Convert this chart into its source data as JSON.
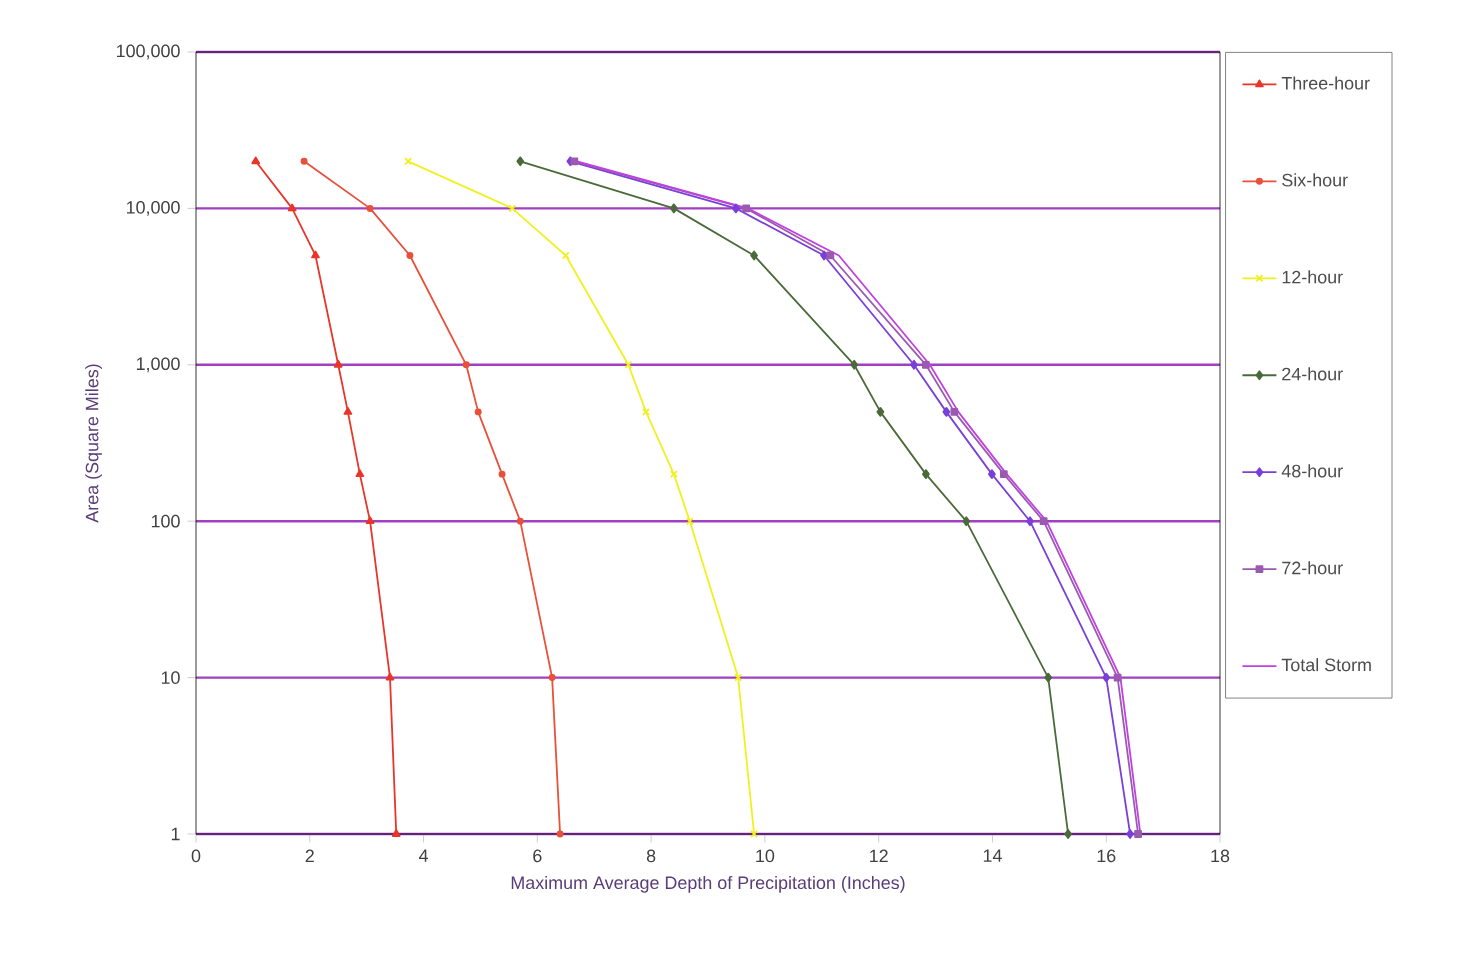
{
  "chart_data": {
    "type": "line",
    "xlabel": "Maximum Average Depth of Precipitation (Inches)",
    "ylabel": "Area (Square Miles)",
    "log": "y",
    "grid": "y",
    "legend": "right",
    "xlim": [
      0,
      18
    ],
    "xticks": [
      0,
      2,
      4,
      6,
      8,
      10,
      12,
      14,
      16,
      18
    ],
    "ylim": [
      1,
      100000
    ],
    "yticks": [
      1,
      10,
      100,
      {
        "value": 1000,
        "label": "1,000"
      },
      {
        "value": 10000,
        "label": "10,000"
      },
      {
        "value": 100000,
        "label": "100,000"
      }
    ],
    "series": [
      {
        "name": "Three-hour",
        "color": "#e8352a",
        "marker": "triangle",
        "x": [
          1.05,
          1.69,
          2.1,
          2.5,
          2.67,
          2.88,
          3.06,
          3.41,
          3.52
        ],
        "values": [
          20000,
          10000,
          5000,
          1000,
          500,
          200,
          100,
          10,
          1
        ]
      },
      {
        "name": "Six-hour",
        "color": "#e8503a",
        "marker": "circle",
        "x": [
          1.9,
          3.06,
          3.76,
          4.75,
          4.96,
          5.38,
          5.7,
          6.26,
          6.4
        ],
        "values": [
          20000,
          10000,
          5000,
          1000,
          500,
          200,
          100,
          10,
          1
        ]
      },
      {
        "name": "12-hour",
        "color": "#f0f020",
        "marker": "cross",
        "x": [
          3.73,
          5.56,
          6.5,
          7.6,
          7.91,
          8.4,
          8.68,
          9.53,
          9.81
        ],
        "values": [
          20000,
          10000,
          5000,
          1000,
          500,
          200,
          100,
          10,
          1
        ]
      },
      {
        "name": "24-hour",
        "color": "#4a6a3a",
        "marker": "diamond",
        "x": [
          5.7,
          8.4,
          9.81,
          11.57,
          12.03,
          12.83,
          13.54,
          14.98,
          15.33
        ],
        "values": [
          20000,
          10000,
          5000,
          1000,
          500,
          200,
          100,
          10,
          1
        ]
      },
      {
        "name": "48-hour",
        "color": "#7a3fd8",
        "marker": "diamond",
        "x": [
          6.58,
          9.49,
          11.04,
          12.62,
          13.19,
          13.99,
          14.66,
          16.0,
          16.42
        ],
        "values": [
          20000,
          10000,
          5000,
          1000,
          500,
          200,
          100,
          10,
          1
        ]
      },
      {
        "name": "72-hour",
        "color": "#9a5ab0",
        "marker": "square",
        "x": [
          6.65,
          9.67,
          11.15,
          12.83,
          13.33,
          14.2,
          14.9,
          16.2,
          16.56
        ],
        "values": [
          20000,
          10000,
          5000,
          1000,
          500,
          200,
          100,
          10,
          1
        ]
      },
      {
        "name": "Total Storm",
        "color": "#c040e0",
        "marker": "none",
        "x": [
          6.7,
          9.7,
          11.3,
          12.9,
          13.4,
          14.25,
          14.95,
          16.25,
          16.6
        ],
        "values": [
          20000,
          10000,
          5000,
          1000,
          500,
          200,
          100,
          10,
          1
        ]
      }
    ]
  }
}
